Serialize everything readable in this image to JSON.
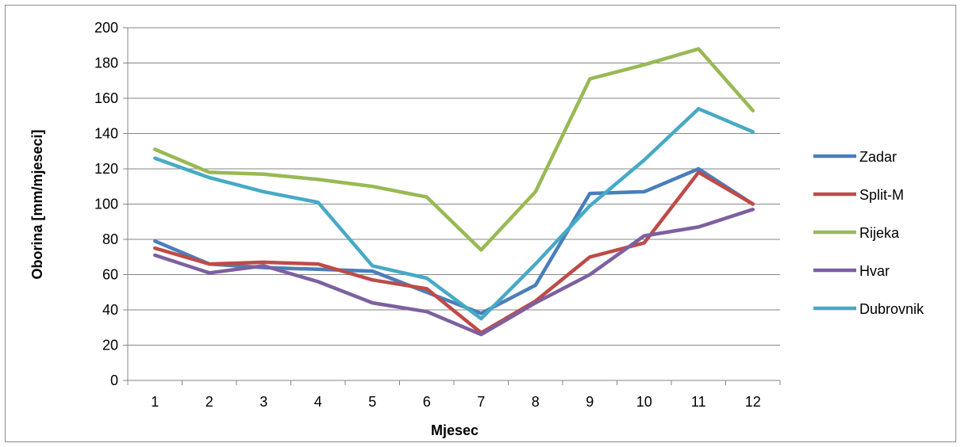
{
  "chart_data": {
    "type": "line",
    "xlabel": "Mjesec",
    "ylabel": "Oborina [mm/mjeseci]",
    "ylim": [
      0,
      200
    ],
    "ytick_step": 20,
    "grid": "horizontal",
    "legend_position": "right",
    "categories": [
      "1",
      "2",
      "3",
      "4",
      "5",
      "6",
      "7",
      "8",
      "9",
      "10",
      "11",
      "12"
    ],
    "series": [
      {
        "name": "Zadar",
        "color": "#4a7ebb",
        "values": [
          79,
          66,
          64,
          63,
          62,
          50,
          38,
          54,
          106,
          107,
          120,
          100
        ]
      },
      {
        "name": "Split-M",
        "color": "#be4b48",
        "values": [
          75,
          66,
          67,
          66,
          57,
          52,
          27,
          45,
          70,
          78,
          118,
          100
        ]
      },
      {
        "name": "Rijeka",
        "color": "#98b954",
        "values": [
          131,
          118,
          117,
          114,
          110,
          104,
          74,
          107,
          171,
          179,
          188,
          153
        ]
      },
      {
        "name": "Hvar",
        "color": "#7d60a0",
        "values": [
          71,
          61,
          65,
          56,
          44,
          39,
          26,
          44,
          60,
          82,
          87,
          97
        ]
      },
      {
        "name": "Dubrovnik",
        "color": "#46aac5",
        "values": [
          126,
          115,
          107,
          101,
          65,
          58,
          35,
          66,
          99,
          125,
          154,
          141
        ]
      }
    ]
  }
}
